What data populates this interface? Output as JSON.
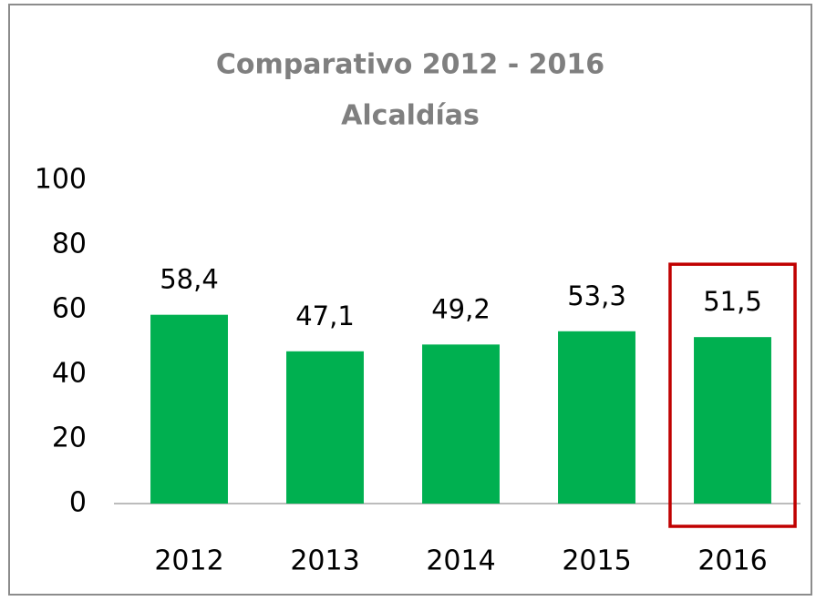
{
  "chart_data": {
    "type": "bar",
    "title": "Comparativo 2012 - 2016",
    "subtitle": "Alcaldías",
    "categories": [
      "2012",
      "2013",
      "2014",
      "2015",
      "2016"
    ],
    "values": [
      58.4,
      47.1,
      49.2,
      53.3,
      51.5
    ],
    "value_labels": [
      "58,4",
      "47,1",
      "49,2",
      "53,3",
      "51,5"
    ],
    "color": "#00b050",
    "ylim": [
      0,
      100
    ],
    "yticks": [
      0,
      20,
      40,
      60,
      80,
      100
    ],
    "grid": false,
    "highlight": "2016",
    "highlight_color": "#c00000"
  }
}
